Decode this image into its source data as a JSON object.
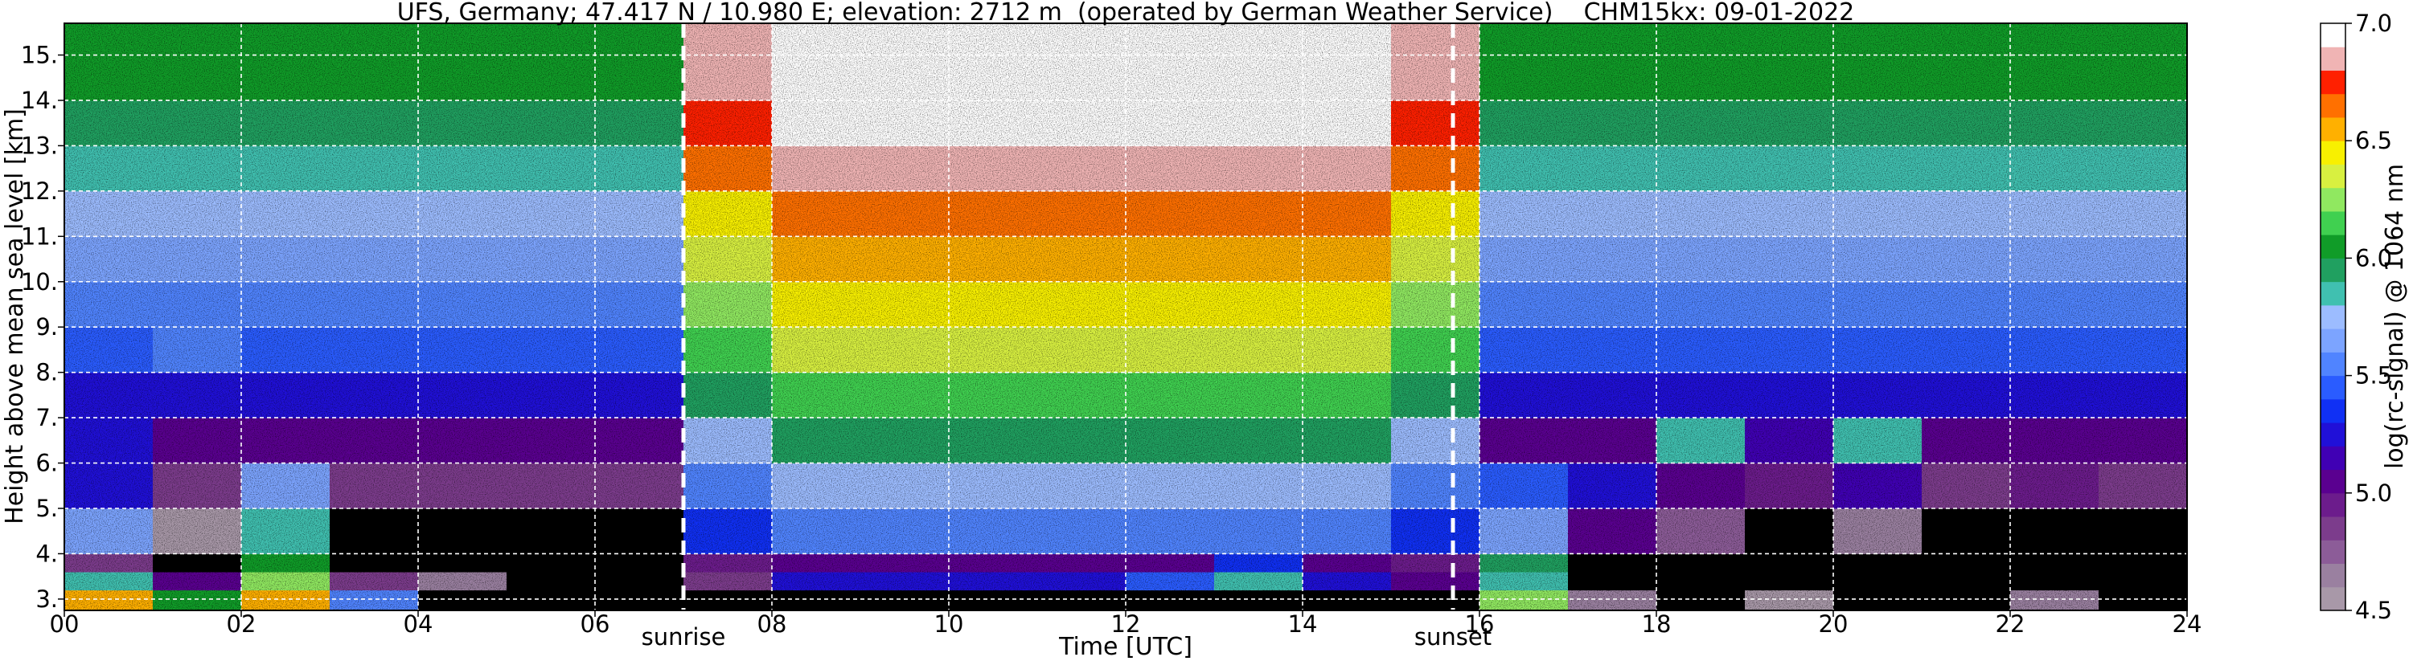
{
  "chart_data": {
    "type": "heatmap",
    "title": "UFS, Germany; 47.417 N / 10.980 E; elevation: 2712 m  (operated by German Weather Service)    CHM15kx: 09-01-2022",
    "x_label": "Time [UTC]",
    "y_label": "Height above mean sea level [km]",
    "xlim": [
      0,
      24
    ],
    "ylim": [
      2.75,
      15.7
    ],
    "xticks": [
      {
        "value": 0,
        "label": "00"
      },
      {
        "value": 2,
        "label": "02"
      },
      {
        "value": 4,
        "label": "04"
      },
      {
        "value": 6,
        "label": "06"
      },
      {
        "value": 8,
        "label": "08"
      },
      10,
      12,
      14,
      16,
      18,
      20,
      22,
      24
    ],
    "yticks": [
      {
        "value": 3,
        "label": "3."
      },
      {
        "value": 4,
        "label": "4."
      },
      {
        "value": 5,
        "label": "5."
      },
      {
        "value": 6,
        "label": "6."
      },
      {
        "value": 7,
        "label": "7."
      },
      {
        "value": 8,
        "label": "8."
      },
      {
        "value": 9,
        "label": "9."
      },
      {
        "value": 10,
        "label": "10."
      },
      {
        "value": 11,
        "label": "11."
      },
      {
        "value": 12,
        "label": "12."
      },
      {
        "value": 13,
        "label": "13."
      },
      {
        "value": 14,
        "label": "14."
      },
      {
        "value": 15,
        "label": "15."
      }
    ],
    "grid": true,
    "grid_color": "#ffffff",
    "x_bins": [
      0,
      1,
      2,
      3,
      4,
      5,
      6,
      7,
      8,
      9,
      10,
      11,
      12,
      13,
      14,
      15,
      16,
      17,
      18,
      19,
      20,
      21,
      22,
      23,
      24
    ],
    "y_bins": [
      2.75,
      3.2,
      3.6,
      4,
      5,
      6,
      7,
      8,
      9,
      10,
      11,
      12,
      13,
      14,
      15,
      15.7
    ],
    "values": [
      [
        6.5,
        6.0,
        6.5,
        5.5,
        4.3,
        4.3,
        4.3,
        4.3,
        4.4,
        4.4,
        4.4,
        4.4,
        4.4,
        4.4,
        4.4,
        4.3,
        6.2,
        4.6,
        4.3,
        4.5,
        4.3,
        4.3,
        4.6,
        4.3
      ],
      [
        5.8,
        5.0,
        6.2,
        4.8,
        4.6,
        4.3,
        4.3,
        4.8,
        5.2,
        5.2,
        5.2,
        5.2,
        5.4,
        5.8,
        5.2,
        5.0,
        5.8,
        4.3,
        4.3,
        4.3,
        4.3,
        4.3,
        4.3,
        4.3
      ],
      [
        4.8,
        4.3,
        6.0,
        4.3,
        4.3,
        4.3,
        4.3,
        4.9,
        5.0,
        5.0,
        5.0,
        5.0,
        5.0,
        5.3,
        5.0,
        4.9,
        5.9,
        4.3,
        4.3,
        4.3,
        4.3,
        4.3,
        4.3,
        4.3
      ],
      [
        5.6,
        4.5,
        5.8,
        4.4,
        4.4,
        4.4,
        4.4,
        5.3,
        5.5,
        5.5,
        5.5,
        5.5,
        5.5,
        5.5,
        5.5,
        5.3,
        5.6,
        5.0,
        4.7,
        4.4,
        4.6,
        4.4,
        4.4,
        4.4
      ],
      [
        5.2,
        4.8,
        5.6,
        4.8,
        4.8,
        4.8,
        4.8,
        5.5,
        5.7,
        5.7,
        5.7,
        5.7,
        5.7,
        5.7,
        5.7,
        5.5,
        5.4,
        5.2,
        5.0,
        4.9,
        5.1,
        4.8,
        4.9,
        4.8
      ],
      [
        5.2,
        5.0,
        5.0,
        5.0,
        5.0,
        5.0,
        5.0,
        5.7,
        5.9,
        5.9,
        5.9,
        5.9,
        5.9,
        5.9,
        5.9,
        5.7,
        5.0,
        5.0,
        5.8,
        5.1,
        5.8,
        5.0,
        5.0,
        5.0
      ],
      [
        5.2,
        5.2,
        5.2,
        5.2,
        5.2,
        5.2,
        5.2,
        5.9,
        6.1,
        6.1,
        6.1,
        6.1,
        6.1,
        6.1,
        6.1,
        5.9,
        5.2,
        5.2,
        5.2,
        5.2,
        5.2,
        5.2,
        5.2,
        5.2
      ],
      [
        5.4,
        5.5,
        5.4,
        5.4,
        5.4,
        5.4,
        5.4,
        6.1,
        6.3,
        6.3,
        6.3,
        6.3,
        6.3,
        6.3,
        6.3,
        6.1,
        5.4,
        5.4,
        5.4,
        5.4,
        5.4,
        5.4,
        5.4,
        5.4
      ],
      [
        5.5,
        5.5,
        5.5,
        5.5,
        5.5,
        5.5,
        5.5,
        6.2,
        6.4,
        6.4,
        6.4,
        6.4,
        6.4,
        6.4,
        6.4,
        6.2,
        5.5,
        5.5,
        5.5,
        5.5,
        5.5,
        5.5,
        5.5,
        5.5
      ],
      [
        5.6,
        5.6,
        5.6,
        5.6,
        5.6,
        5.6,
        5.6,
        6.3,
        6.5,
        6.5,
        6.5,
        6.5,
        6.5,
        6.5,
        6.5,
        6.3,
        5.6,
        5.6,
        5.6,
        5.6,
        5.6,
        5.6,
        5.6,
        5.6
      ],
      [
        5.7,
        5.7,
        5.7,
        5.7,
        5.7,
        5.7,
        5.7,
        6.4,
        6.6,
        6.6,
        6.6,
        6.6,
        6.6,
        6.6,
        6.6,
        6.4,
        5.7,
        5.7,
        5.7,
        5.7,
        5.7,
        5.7,
        5.7,
        5.7
      ],
      [
        5.8,
        5.8,
        5.8,
        5.8,
        5.8,
        5.8,
        5.8,
        6.6,
        6.8,
        6.8,
        6.8,
        6.8,
        6.8,
        6.8,
        6.8,
        6.6,
        5.8,
        5.8,
        5.8,
        5.8,
        5.8,
        5.8,
        5.8,
        5.8
      ],
      [
        5.9,
        5.9,
        5.9,
        5.9,
        5.9,
        5.9,
        5.9,
        6.7,
        6.9,
        6.9,
        6.9,
        6.9,
        6.9,
        6.9,
        6.9,
        6.7,
        5.9,
        5.9,
        5.9,
        5.9,
        5.9,
        5.9,
        5.9,
        5.9
      ],
      [
        6.0,
        6.0,
        6.0,
        6.0,
        6.0,
        6.0,
        6.0,
        6.8,
        7.0,
        7.0,
        7.0,
        7.0,
        7.0,
        7.0,
        7.0,
        6.8,
        6.0,
        6.0,
        6.0,
        6.0,
        6.0,
        6.0,
        6.0,
        6.0
      ],
      [
        6.0,
        6.0,
        6.0,
        6.0,
        6.0,
        6.0,
        6.0,
        6.8,
        7.0,
        7.0,
        7.0,
        7.0,
        7.0,
        7.0,
        7.0,
        6.8,
        6.0,
        6.0,
        6.0,
        6.0,
        6.0,
        6.0,
        6.0,
        6.0
      ]
    ],
    "annotations": [
      {
        "text": "sunrise",
        "x": 7.0
      },
      {
        "text": "sunset",
        "x": 15.7
      }
    ],
    "colorbar": {
      "label": "log(rc-signal) @ 1064 nm",
      "range": [
        4.5,
        7.0
      ],
      "ticks": [
        4.5,
        {
          "value": 5,
          "label": "5.0"
        },
        5.5,
        {
          "value": 6,
          "label": "6.0"
        },
        6.5,
        {
          "value": 7,
          "label": "7.0"
        }
      ],
      "under_color": "#000000",
      "colors": [
        "#a898a8",
        "#9a80a0",
        "#8c5c98",
        "#7c3c8c",
        "#6c1c8c",
        "#5a0090",
        "#4000b4",
        "#2010d8",
        "#1030f4",
        "#2a5cff",
        "#5084ff",
        "#7ca4ff",
        "#9cbcff",
        "#40c0b0",
        "#20a060",
        "#109c28",
        "#40d050",
        "#90e860",
        "#d8f040",
        "#f8f000",
        "#ffb000",
        "#ff7000",
        "#ff2000",
        "#f0b4b4",
        "#ffffff"
      ]
    }
  }
}
